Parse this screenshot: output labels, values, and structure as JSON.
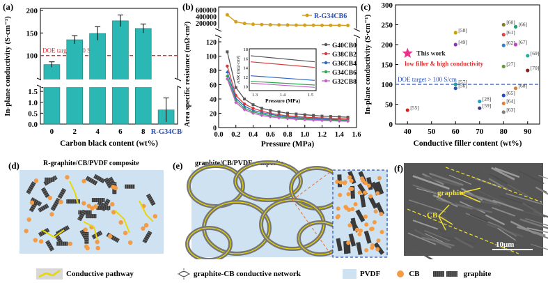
{
  "chart_data": [
    {
      "panel": "(a)",
      "type": "bar",
      "ylabel": "In-plane conductivity (S·cm⁻¹)",
      "xlabel": "Carbon black content (wt%)",
      "categories": [
        "0",
        "2",
        "4",
        "6",
        "8"
      ],
      "values": [
        80,
        135,
        149,
        177,
        160
      ],
      "errors": [
        6,
        9,
        15,
        13,
        10
      ],
      "extra_label": "R-G34CB6",
      "extra_value": 0.65,
      "extra_error": 0.55,
      "yticks_upper": [
        "100",
        "150",
        "200"
      ],
      "yticks_lower": [
        "0.0",
        "0.5",
        "1.0",
        "1.5"
      ],
      "upper_range": [
        50,
        200
      ],
      "lower_range": [
        0,
        1.6
      ],
      "doe_label": "DOE target >100 S/cm",
      "doe_value": 100,
      "color": "#2bb8b4"
    },
    {
      "panel": "(b)",
      "type": "line",
      "ylabel": "Area specific resistance (mΩ·cm²)",
      "xlabel": "Pressure (MPa)",
      "x": [
        0.1,
        0.2,
        0.3,
        0.4,
        0.5,
        0.6,
        0.7,
        0.8,
        0.9,
        1.0,
        1.1,
        1.2,
        1.3,
        1.4,
        1.5
      ],
      "xticks": [
        "0.0",
        "0.2",
        "0.4",
        "0.6",
        "0.8",
        "1.0",
        "1.2",
        "1.4",
        "1.6"
      ],
      "yticks_upper": [
        "200000",
        "400000",
        "600000"
      ],
      "yticks_lower": [
        "0",
        "20",
        "40",
        "60",
        "80",
        "100",
        "120"
      ],
      "upper_series": {
        "name": "R-G34CB6",
        "color": "#d4a020",
        "values": [
          450000,
          240000,
          190000,
          168000,
          158000,
          151000,
          146000,
          143000,
          140000,
          138000,
          136000,
          135000,
          134000,
          133000,
          132000
        ]
      },
      "series": [
        {
          "name": "G40CB0",
          "color": "#555555",
          "values": [
            106,
            56,
            40,
            32,
            27,
            24,
            22,
            20,
            19,
            18,
            17,
            16,
            15.5,
            15,
            14.5
          ]
        },
        {
          "name": "G38CB2",
          "color": "#d63b3b",
          "values": [
            86,
            45,
            33,
            27,
            23,
            20,
            18,
            16.5,
            15.5,
            14.5,
            14,
            13.5,
            13,
            12.5,
            12
          ]
        },
        {
          "name": "G36CB4",
          "color": "#2a66c4",
          "values": [
            78,
            41,
            30,
            24,
            21,
            18.5,
            16.5,
            15,
            14,
            13.2,
            12.6,
            12,
            11.5,
            11,
            10.6
          ]
        },
        {
          "name": "G34CB6",
          "color": "#2aa84a",
          "values": [
            72,
            38,
            27,
            22,
            19,
            16.5,
            15,
            13.8,
            12.8,
            12,
            11.4,
            10.9,
            10.4,
            10,
            9.6
          ]
        },
        {
          "name": "G32CB8",
          "color": "#c060c8",
          "values": [
            68,
            35,
            25,
            20,
            17,
            15,
            13.5,
            12.5,
            11.6,
            11,
            10.4,
            9.9,
            9.5,
            9.1,
            8.8
          ]
        }
      ],
      "inset": {
        "ylabel": "ASR (mΩ·cm²)",
        "xlabel": "Pressure (MPa)",
        "xticks": [
          "1.3",
          "1.4",
          "1.5"
        ],
        "yticks": [
          "10",
          "12",
          "14",
          "16",
          "18"
        ]
      }
    },
    {
      "panel": "(c)",
      "type": "scatter",
      "ylabel": "In-plane conductivity (S·cm⁻¹)",
      "xlabel": "Conductive filler content (wt%)",
      "xticks": [
        "40",
        "50",
        "60",
        "70",
        "80",
        "90"
      ],
      "yticks": [
        "0",
        "50",
        "100",
        "150",
        "200",
        "250",
        "300"
      ],
      "xlim": [
        35,
        95
      ],
      "ylim": [
        0,
        300
      ],
      "doe_label": "DOE target > 100 S/cm",
      "this_work_label": "This work",
      "this_work_sub": "low filler & high conductivity",
      "this_work": {
        "x": 40,
        "y": 178
      },
      "points": [
        {
          "label": "[55]",
          "x": 40,
          "y": 35,
          "color": "#d62020"
        },
        {
          "label": "[58]",
          "x": 60,
          "y": 230,
          "color": "#c8a000"
        },
        {
          "label": "[49]",
          "x": 60,
          "y": 200,
          "color": "#8a3aa8"
        },
        {
          "label": "[57]",
          "x": 60,
          "y": 100,
          "color": "#20a0a0"
        },
        {
          "label": "[56]",
          "x": 60,
          "y": 90,
          "color": "#3355aa"
        },
        {
          "label": "[28]",
          "x": 70,
          "y": 57,
          "color": "#20a0c0"
        },
        {
          "label": "[59]",
          "x": 70,
          "y": 40,
          "color": "#404080"
        },
        {
          "label": "[60]",
          "x": 80,
          "y": 250,
          "color": "#808020"
        },
        {
          "label": "[61]",
          "x": 80,
          "y": 225,
          "color": "#e04040"
        },
        {
          "label": "[62]",
          "x": 80,
          "y": 198,
          "color": "#3080d0"
        },
        {
          "label": "[27]",
          "x": 80,
          "y": 145,
          "color": "#60a030"
        },
        {
          "label": "[65]",
          "x": 80,
          "y": 72,
          "color": "#2050c0"
        },
        {
          "label": "[64]",
          "x": 80,
          "y": 52,
          "color": "#e08040"
        },
        {
          "label": "[63]",
          "x": 80,
          "y": 30,
          "color": "#808080"
        },
        {
          "label": "[66]",
          "x": 85,
          "y": 245,
          "color": "#20a070"
        },
        {
          "label": "[67]",
          "x": 85,
          "y": 200,
          "color": "#c040c0"
        },
        {
          "label": "[68]",
          "x": 85,
          "y": 90,
          "color": "#d08040"
        },
        {
          "label": "[69]",
          "x": 90,
          "y": 172,
          "color": "#20b0a0"
        },
        {
          "label": "[70]",
          "x": 90,
          "y": 135,
          "color": "#802020"
        }
      ]
    }
  ],
  "schematics": {
    "d_label": "(d)",
    "d_title": "R-graphite/CB/PVDF composite",
    "e_label": "(e)",
    "e_title": "graphite/CB/PVDF composite",
    "f_label": "(f)",
    "f_graphite": "graphite",
    "f_cb": "CB",
    "f_scale": "10μm"
  },
  "panel_labels": {
    "a": "(a)",
    "b": "(b)",
    "c": "(c)"
  },
  "legend": {
    "pathway": "Conductive pathway",
    "network": "graphite-CB conductive network",
    "pvdf": "PVDF",
    "cb": "CB",
    "graphite": "graphite"
  }
}
